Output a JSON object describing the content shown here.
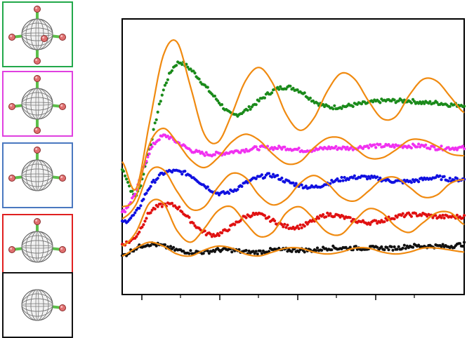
{
  "panels": [
    {
      "border_color": "#22a84a",
      "substituents": 5,
      "label": "green"
    },
    {
      "border_color": "#e040e0",
      "substituents": 4,
      "label": "magenta"
    },
    {
      "border_color": "#4a78c0",
      "substituents": 3,
      "label": "blue"
    },
    {
      "border_color": "#e02020",
      "substituents": 3,
      "label": "red"
    },
    {
      "border_color": "#111111",
      "substituents": 1,
      "label": "black"
    }
  ],
  "chart_data": {
    "type": "line",
    "title": "",
    "xlabel": "",
    "ylabel": "",
    "grid": false,
    "legend": "none",
    "x_range": [
      0,
      100
    ],
    "fit_color": "#f08a10",
    "x_ticks_major": 4,
    "x_ticks_minor": 4,
    "series": [
      {
        "color": "#1a8a1a",
        "x": [
          0,
          4,
          8,
          12,
          16,
          20,
          24,
          28,
          32,
          36,
          40,
          44,
          48,
          52,
          56,
          60,
          64,
          68,
          72,
          76,
          80,
          84,
          88,
          92,
          96,
          100
        ],
        "values": [
          0.44,
          0.31,
          0.55,
          0.84,
          0.98,
          0.95,
          0.87,
          0.79,
          0.72,
          0.74,
          0.79,
          0.84,
          0.86,
          0.84,
          0.79,
          0.76,
          0.76,
          0.77,
          0.78,
          0.79,
          0.79,
          0.79,
          0.78,
          0.78,
          0.77,
          0.77
        ],
        "fit": [
          0.48,
          0.34,
          0.68,
          1.02,
          1.09,
          0.86,
          0.62,
          0.58,
          0.72,
          0.89,
          0.96,
          0.88,
          0.72,
          0.64,
          0.7,
          0.84,
          0.93,
          0.9,
          0.79,
          0.7,
          0.71,
          0.82,
          0.9,
          0.89,
          0.81,
          0.73
        ]
      },
      {
        "color": "#f030f0",
        "x": [
          0,
          4,
          8,
          12,
          16,
          20,
          24,
          28,
          32,
          36,
          40,
          44,
          48,
          52,
          56,
          60,
          64,
          68,
          72,
          76,
          80,
          84,
          88,
          92,
          96,
          100
        ],
        "values": [
          0.22,
          0.33,
          0.53,
          0.61,
          0.58,
          0.54,
          0.52,
          0.52,
          0.53,
          0.54,
          0.55,
          0.55,
          0.55,
          0.54,
          0.54,
          0.55,
          0.55,
          0.55,
          0.56,
          0.56,
          0.56,
          0.56,
          0.56,
          0.55,
          0.55,
          0.55
        ],
        "fit": [
          0.25,
          0.3,
          0.57,
          0.65,
          0.58,
          0.49,
          0.45,
          0.5,
          0.58,
          0.62,
          0.59,
          0.52,
          0.47,
          0.48,
          0.55,
          0.6,
          0.6,
          0.55,
          0.5,
          0.5,
          0.54,
          0.59,
          0.59,
          0.56,
          0.52,
          0.51
        ]
      },
      {
        "color": "#1010e0",
        "x": [
          0,
          4,
          8,
          12,
          16,
          20,
          24,
          28,
          32,
          36,
          40,
          44,
          48,
          52,
          56,
          60,
          64,
          68,
          72,
          76,
          80,
          84,
          88,
          92,
          96,
          100
        ],
        "values": [
          0.17,
          0.22,
          0.35,
          0.42,
          0.43,
          0.41,
          0.36,
          0.32,
          0.33,
          0.37,
          0.4,
          0.41,
          0.38,
          0.36,
          0.35,
          0.37,
          0.39,
          0.4,
          0.4,
          0.39,
          0.38,
          0.38,
          0.39,
          0.4,
          0.39,
          0.39
        ]
      },
      {
        "color": "#e01010",
        "x": [
          0,
          4,
          8,
          12,
          16,
          20,
          24,
          28,
          32,
          36,
          40,
          44,
          48,
          52,
          56,
          60,
          64,
          68,
          72,
          76,
          80,
          84,
          88,
          92,
          96,
          100
        ],
        "values": [
          0.06,
          0.1,
          0.22,
          0.26,
          0.25,
          0.18,
          0.12,
          0.11,
          0.15,
          0.2,
          0.21,
          0.18,
          0.15,
          0.15,
          0.18,
          0.21,
          0.2,
          0.18,
          0.17,
          0.18,
          0.2,
          0.21,
          0.21,
          0.2,
          0.2,
          0.2
        ]
      },
      {
        "color": "#101010",
        "x": [
          0,
          4,
          8,
          12,
          16,
          20,
          24,
          28,
          32,
          36,
          40,
          44,
          48,
          52,
          56,
          60,
          64,
          68,
          72,
          76,
          80,
          84,
          88,
          92,
          96,
          100
        ],
        "values": [
          0.0,
          0.04,
          0.06,
          0.05,
          0.03,
          0.02,
          0.02,
          0.03,
          0.03,
          0.02,
          0.02,
          0.03,
          0.03,
          0.03,
          0.03,
          0.04,
          0.04,
          0.04,
          0.04,
          0.04,
          0.04,
          0.05,
          0.05,
          0.05,
          0.05,
          0.06
        ]
      }
    ],
    "fits": [
      {
        "color": "#f08a10",
        "x": [
          0,
          4,
          8,
          12,
          16,
          20,
          24,
          28,
          32,
          36,
          40,
          44,
          48,
          52,
          56,
          60,
          64,
          68,
          72,
          76,
          80,
          84,
          88,
          92,
          96,
          100
        ],
        "values": [
          0.19,
          0.26,
          0.43,
          0.44,
          0.33,
          0.24,
          0.25,
          0.35,
          0.42,
          0.4,
          0.31,
          0.26,
          0.29,
          0.37,
          0.41,
          0.37,
          0.3,
          0.28,
          0.33,
          0.39,
          0.4,
          0.35,
          0.3,
          0.31,
          0.37,
          0.39
        ]
      },
      {
        "color": "#f08a10",
        "x": [
          0,
          4,
          8,
          12,
          16,
          20,
          24,
          28,
          32,
          36,
          40,
          44,
          48,
          52,
          56,
          60,
          64,
          68,
          72,
          76,
          80,
          84,
          88,
          92,
          96,
          100
        ],
        "values": [
          0.05,
          0.12,
          0.27,
          0.27,
          0.13,
          0.07,
          0.14,
          0.23,
          0.25,
          0.17,
          0.1,
          0.12,
          0.22,
          0.25,
          0.19,
          0.12,
          0.11,
          0.18,
          0.24,
          0.22,
          0.15,
          0.12,
          0.17,
          0.22,
          0.22,
          0.16
        ]
      },
      {
        "color": "#f08a10",
        "x": [
          0,
          4,
          8,
          12,
          16,
          20,
          24,
          28,
          32,
          36,
          40,
          44,
          48,
          52,
          56,
          60,
          64,
          68,
          72,
          76,
          80,
          84,
          88,
          92,
          96,
          100
        ],
        "values": [
          0.0,
          0.04,
          0.07,
          0.05,
          0.01,
          0.0,
          0.03,
          0.05,
          0.04,
          0.01,
          0.0,
          0.02,
          0.04,
          0.04,
          0.02,
          0.01,
          0.02,
          0.04,
          0.04,
          0.02,
          0.01,
          0.02,
          0.04,
          0.04,
          0.03,
          0.02
        ]
      }
    ]
  }
}
